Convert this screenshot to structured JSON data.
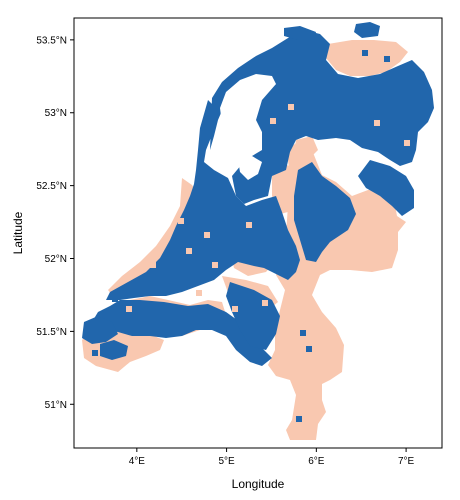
{
  "map": {
    "x_axis": {
      "label": "Longitude",
      "ticks": [
        {
          "value": 4,
          "label": "4°E"
        },
        {
          "value": 5,
          "label": "5°E"
        },
        {
          "value": 6,
          "label": "6°E"
        },
        {
          "value": 7,
          "label": "7°E"
        }
      ]
    },
    "y_axis": {
      "label": "Latitude",
      "ticks": [
        {
          "value": 51.0,
          "label": "51°N"
        },
        {
          "value": 51.5,
          "label": "51.5°N"
        },
        {
          "value": 52.0,
          "label": "52°N"
        },
        {
          "value": 52.5,
          "label": "52.5°N"
        },
        {
          "value": 53.0,
          "label": "53°N"
        },
        {
          "value": 53.5,
          "label": "53.5°N"
        }
      ]
    },
    "lon_range": [
      3.3,
      7.4
    ],
    "lat_range": [
      50.7,
      53.65
    ],
    "colors": {
      "low_lying": "#2166ac",
      "high_ground": "#f9c8b0",
      "frame": "#000000",
      "background": "#ffffff"
    }
  }
}
